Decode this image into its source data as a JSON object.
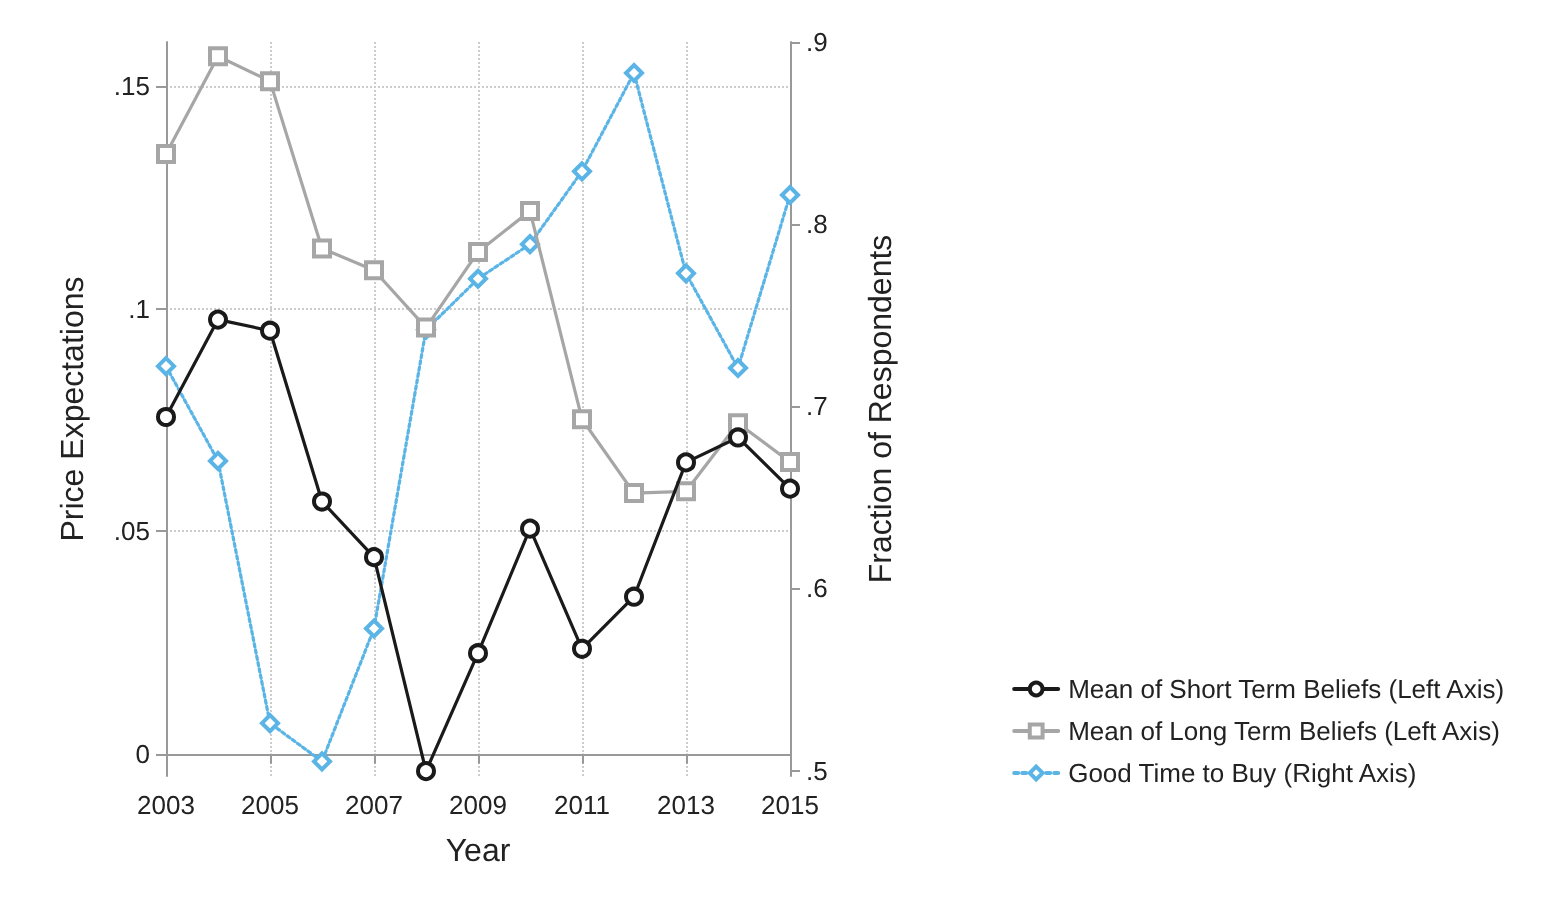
{
  "chart_data": {
    "type": "line",
    "xlabel": "Year",
    "ylabel": "Price Expectations",
    "y2label": "Fraction of Respondents",
    "x": [
      2003,
      2004,
      2005,
      2006,
      2007,
      2008,
      2009,
      2010,
      2011,
      2012,
      2013,
      2014,
      2015
    ],
    "series": [
      {
        "name": "Mean of Short Term Beliefs (Left Axis)",
        "color": "#1a1a1a",
        "marker": "circle",
        "line_style": "solid",
        "values": [
          0.0757,
          0.0976,
          0.0951,
          0.0567,
          0.0442,
          -0.0039,
          0.0226,
          0.0506,
          0.0236,
          0.0353,
          0.0655,
          0.0711,
          0.0596
        ]
      },
      {
        "name": "Mean of Long Term Beliefs (Left Axis)",
        "color": "#a6a6a6",
        "marker": "square",
        "line_style": "solid",
        "values": [
          0.1348,
          0.1568,
          0.1512,
          0.1136,
          0.1087,
          0.0958,
          0.1128,
          0.122,
          0.0752,
          0.0586,
          0.059,
          0.0743,
          0.0656
        ]
      },
      {
        "name": "Good Time to Buy (Right Axis)",
        "color": "#5ab4e5",
        "marker": "diamond",
        "line_style": "dotted",
        "axis": "y2",
        "values": [
          0.722,
          0.67,
          0.526,
          0.505,
          0.578,
          0.742,
          0.77,
          0.789,
          0.829,
          0.883,
          0.773,
          0.721,
          0.816
        ]
      }
    ],
    "xlim": [
      2003,
      2015
    ],
    "xticks": [
      2003,
      2005,
      2007,
      2009,
      2011,
      2013,
      2015
    ],
    "ylim": [
      -0.005,
      0.16
    ],
    "yticks": [
      {
        "value": 0,
        "label": "0"
      },
      {
        "value": 0.05,
        "label": ".05"
      },
      {
        "value": 0.1,
        "label": ".1"
      },
      {
        "value": 0.15,
        "label": ".15"
      }
    ],
    "y2lim": [
      0.497,
      0.9
    ],
    "y2ticks": [
      {
        "value": 0.5,
        "label": ".5"
      },
      {
        "value": 0.6,
        "label": ".6"
      },
      {
        "value": 0.7,
        "label": ".7"
      },
      {
        "value": 0.8,
        "label": ".8"
      },
      {
        "value": 0.9,
        "label": ".9"
      }
    ],
    "grid": true,
    "legend": "right"
  }
}
